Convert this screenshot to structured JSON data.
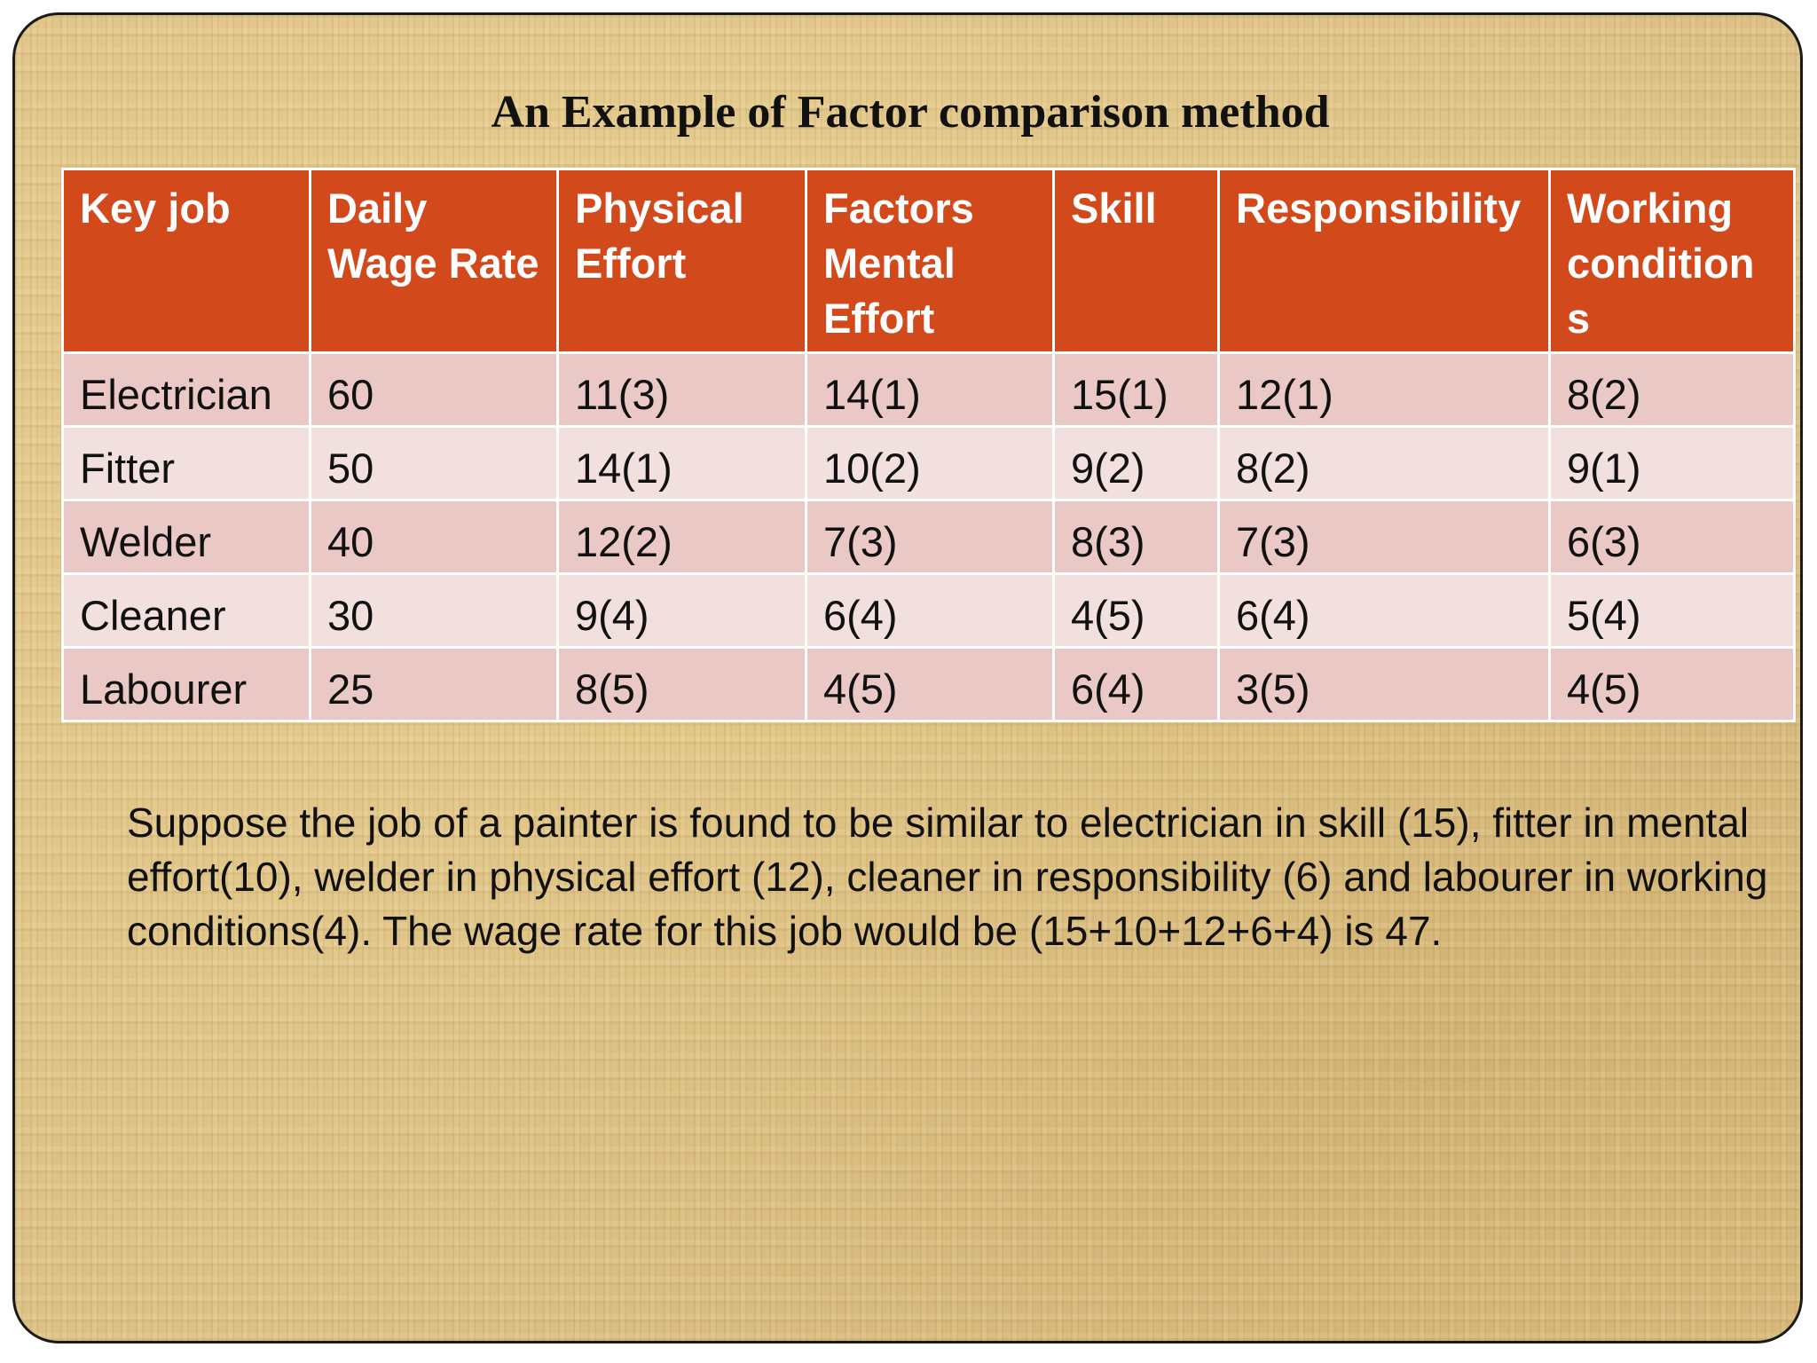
{
  "title": "An Example of Factor comparison method",
  "table": {
    "headers": [
      "Key job",
      "Daily Wage Rate",
      "Physical Effort",
      "Factors Mental Effort",
      "Skill",
      "Responsibility",
      "Working conditions"
    ],
    "rows": [
      [
        "Electrician",
        "60",
        "11(3)",
        "14(1)",
        "15(1)",
        "12(1)",
        "8(2)"
      ],
      [
        "Fitter",
        "50",
        "14(1)",
        "10(2)",
        "9(2)",
        "8(2)",
        "9(1)"
      ],
      [
        "Welder",
        "40",
        "12(2)",
        "7(3)",
        "8(3)",
        "7(3)",
        "6(3)"
      ],
      [
        "Cleaner",
        "30",
        "9(4)",
        "6(4)",
        "4(5)",
        "6(4)",
        "5(4)"
      ],
      [
        "Labourer",
        "25",
        "8(5)",
        "4(5)",
        "6(4)",
        "3(5)",
        "4(5)"
      ]
    ]
  },
  "note": "Suppose the job of a painter is found to be similar to electrician in skill (15), fitter in mental effort(10), welder in physical effort (12), cleaner in responsibility (6) and labourer in working conditions(4). The wage rate for this job would be (15+10+12+6+4) is 47.",
  "colors": {
    "header_bg": "#d24a1c",
    "row_odd_bg": "#e9c8c6",
    "row_even_bg": "#f2e0df",
    "slide_bg": "#dcc186"
  }
}
